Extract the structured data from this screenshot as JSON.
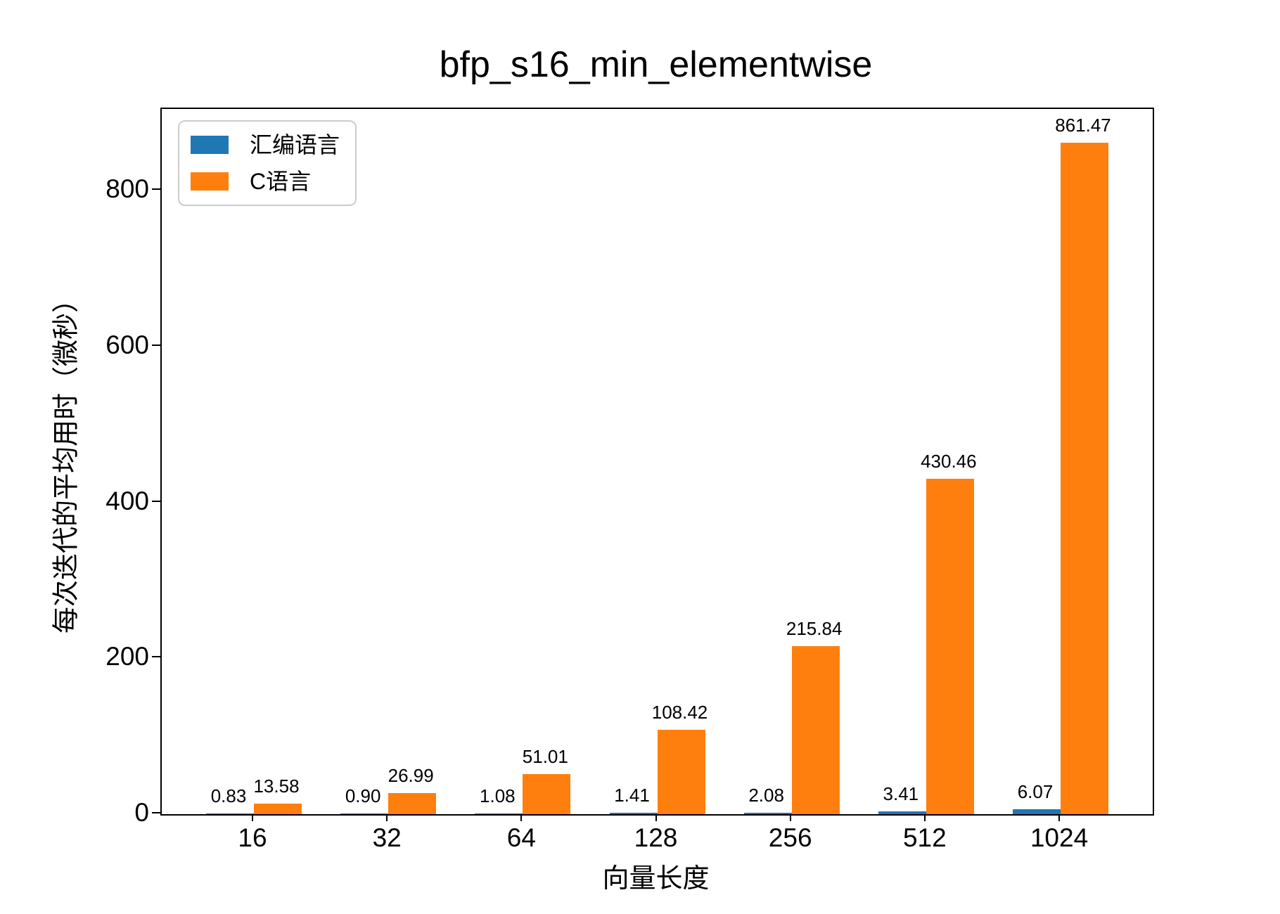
{
  "chart_data": {
    "type": "bar",
    "title": "bfp_s16_min_elementwise",
    "xlabel": "向量长度",
    "ylabel": "每次迭代的平均用时（微秒）",
    "categories": [
      "16",
      "32",
      "64",
      "128",
      "256",
      "512",
      "1024"
    ],
    "series": [
      {
        "name": "汇编语言",
        "color": "#1f77b4",
        "values": [
          0.83,
          0.9,
          1.08,
          1.41,
          2.08,
          3.41,
          6.07
        ],
        "labels": [
          "0.83",
          "0.90",
          "1.08",
          "1.41",
          "2.08",
          "3.41",
          "6.07"
        ]
      },
      {
        "name": "C语言",
        "color": "#ff7f0e",
        "values": [
          13.58,
          26.99,
          51.01,
          108.42,
          215.84,
          430.46,
          861.47
        ],
        "labels": [
          "13.58",
          "26.99",
          "51.01",
          "108.42",
          "215.84",
          "430.46",
          "861.47"
        ]
      }
    ],
    "yticks": [
      0,
      200,
      400,
      600,
      800
    ],
    "ylim": [
      0,
      905
    ],
    "grid": false,
    "legend_position": "upper-left",
    "bar_value_labels": true,
    "spine_color": "#000000",
    "background_color": "#ffffff"
  }
}
